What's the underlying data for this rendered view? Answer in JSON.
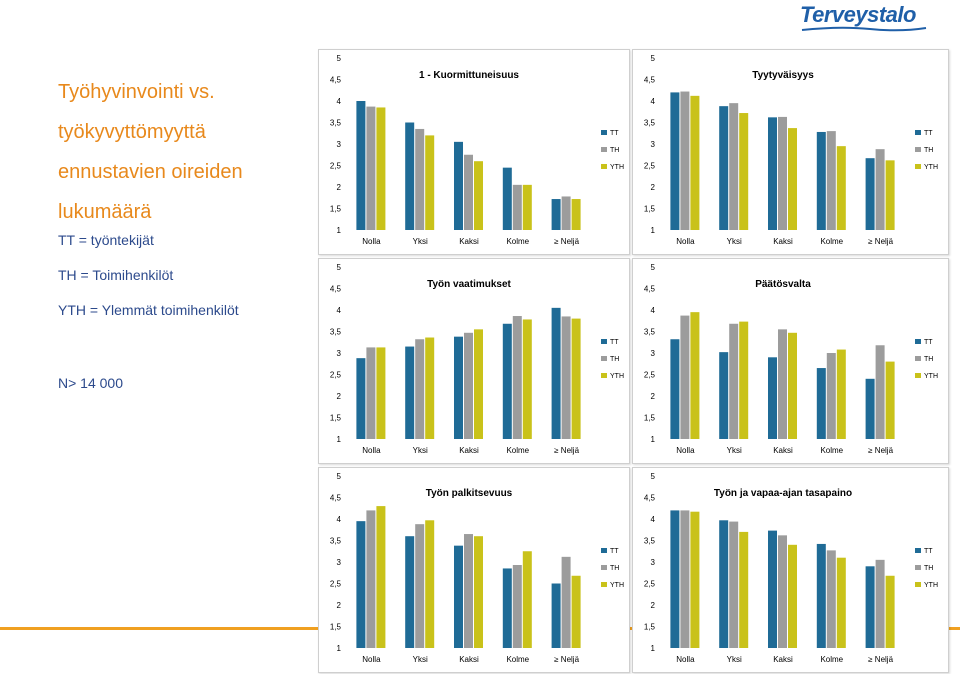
{
  "logo": {
    "text": "Terveystalo",
    "color": "#1f5fa8"
  },
  "title_lines": [
    "Työhyvinvointi vs.",
    "työkyvyttömyyttä",
    "ennustavien oireiden",
    "lukumäärä"
  ],
  "legend_explanations": {
    "tt": "TT = työntekijät",
    "th": "TH = Toimihenkilöt",
    "yth": "YTH = Ylemmät toimihenkilöt"
  },
  "n_text": "N> 14 000",
  "colors": {
    "title": "#e8891c",
    "text": "#2c4a8c",
    "accent_line": "#f0a020",
    "TT": "#1f6b96",
    "TH": "#9c9c9c",
    "YTH": "#c9c21a"
  },
  "chart_data": [
    {
      "type": "bar",
      "title": "1 - Kuormittuneisuus",
      "categories": [
        "Nolla",
        "Yksi",
        "Kaksi",
        "Kolme",
        "≥ Neljä"
      ],
      "ylim": [
        1,
        5
      ],
      "yticks": [
        "1",
        "1,5",
        "2",
        "2,5",
        "3",
        "3,5",
        "4",
        "4,5",
        "5"
      ],
      "legend_position": "right",
      "series": [
        {
          "name": "TT",
          "values": [
            4.0,
            3.5,
            3.05,
            2.45,
            1.72
          ]
        },
        {
          "name": "TH",
          "values": [
            3.87,
            3.35,
            2.75,
            2.05,
            1.78
          ]
        },
        {
          "name": "YTH",
          "values": [
            3.85,
            3.2,
            2.6,
            2.05,
            1.72
          ]
        }
      ]
    },
    {
      "type": "bar",
      "title": "Tyytyväisyys",
      "categories": [
        "Nolla",
        "Yksi",
        "Kaksi",
        "Kolme",
        "≥ Neljä"
      ],
      "ylim": [
        1,
        5
      ],
      "yticks": [
        "1",
        "1,5",
        "2",
        "2,5",
        "3",
        "3,5",
        "4",
        "4,5",
        "5"
      ],
      "legend_position": "right",
      "series": [
        {
          "name": "TT",
          "values": [
            4.2,
            3.88,
            3.62,
            3.28,
            2.67
          ]
        },
        {
          "name": "TH",
          "values": [
            4.22,
            3.95,
            3.63,
            3.3,
            2.88
          ]
        },
        {
          "name": "YTH",
          "values": [
            4.12,
            3.72,
            3.37,
            2.95,
            2.62
          ]
        }
      ]
    },
    {
      "type": "bar",
      "title": "Työn vaatimukset",
      "categories": [
        "Nolla",
        "Yksi",
        "Kaksi",
        "Kolme",
        "≥ Neljä"
      ],
      "ylim": [
        1,
        5
      ],
      "yticks": [
        "1",
        "1,5",
        "2",
        "2,5",
        "3",
        "3,5",
        "4",
        "4,5",
        "5"
      ],
      "legend_position": "right",
      "series": [
        {
          "name": "TT",
          "values": [
            2.88,
            3.15,
            3.38,
            3.68,
            4.05
          ]
        },
        {
          "name": "TH",
          "values": [
            3.13,
            3.32,
            3.47,
            3.86,
            3.85
          ]
        },
        {
          "name": "YTH",
          "values": [
            3.13,
            3.36,
            3.55,
            3.78,
            3.8
          ]
        }
      ]
    },
    {
      "type": "bar",
      "title": "Päätösvalta",
      "categories": [
        "Nolla",
        "Yksi",
        "Kaksi",
        "Kolme",
        "≥ Neljä"
      ],
      "ylim": [
        1,
        5
      ],
      "yticks": [
        "1",
        "1,5",
        "2",
        "2,5",
        "3",
        "3,5",
        "4",
        "4,5",
        "5"
      ],
      "legend_position": "right",
      "series": [
        {
          "name": "TT",
          "values": [
            3.32,
            3.02,
            2.9,
            2.65,
            2.4
          ]
        },
        {
          "name": "TH",
          "values": [
            3.87,
            3.68,
            3.55,
            3.0,
            3.18
          ]
        },
        {
          "name": "YTH",
          "values": [
            3.95,
            3.73,
            3.47,
            3.08,
            2.8
          ]
        }
      ]
    },
    {
      "type": "bar",
      "title": "Työn palkitsevuus",
      "categories": [
        "Nolla",
        "Yksi",
        "Kaksi",
        "Kolme",
        "≥ Neljä"
      ],
      "ylim": [
        1,
        5
      ],
      "yticks": [
        "1",
        "1,5",
        "2",
        "2,5",
        "3",
        "3,5",
        "4",
        "4,5",
        "5"
      ],
      "legend_position": "right",
      "series": [
        {
          "name": "TT",
          "values": [
            3.95,
            3.6,
            3.38,
            2.85,
            2.5
          ]
        },
        {
          "name": "TH",
          "values": [
            4.2,
            3.88,
            3.65,
            2.93,
            3.12
          ]
        },
        {
          "name": "YTH",
          "values": [
            4.3,
            3.97,
            3.6,
            3.25,
            2.68
          ]
        }
      ]
    },
    {
      "type": "bar",
      "title": "Työn ja vapaa-ajan tasapaino",
      "categories": [
        "Nolla",
        "Yksi",
        "Kaksi",
        "Kolme",
        "≥ Neljä"
      ],
      "ylim": [
        1,
        5
      ],
      "yticks": [
        "1",
        "1,5",
        "2",
        "2,5",
        "3",
        "3,5",
        "4",
        "4,5",
        "5"
      ],
      "legend_position": "right",
      "series": [
        {
          "name": "TT",
          "values": [
            4.2,
            3.97,
            3.73,
            3.42,
            2.9
          ]
        },
        {
          "name": "TH",
          "values": [
            4.2,
            3.94,
            3.62,
            3.27,
            3.05
          ]
        },
        {
          "name": "YTH",
          "values": [
            4.17,
            3.7,
            3.4,
            3.1,
            2.68
          ]
        }
      ]
    }
  ]
}
